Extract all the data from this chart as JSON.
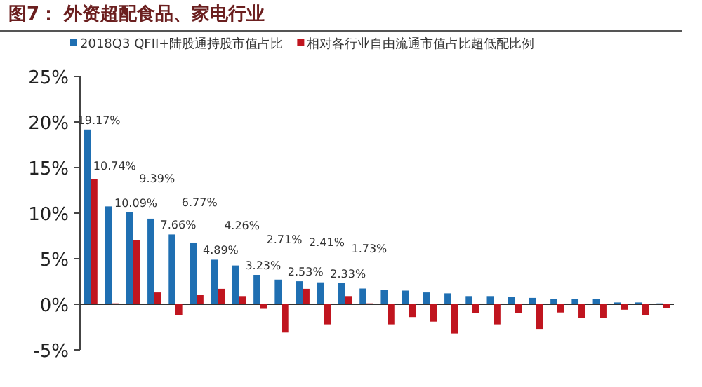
{
  "chart_data": {
    "type": "bar",
    "title": "图7： 外资超配食品、家电行业",
    "categories": [
      null,
      null,
      null,
      null,
      null,
      null,
      null,
      null,
      null,
      null,
      null,
      null,
      null,
      null,
      null,
      null,
      null,
      null,
      null,
      null,
      null,
      null,
      null,
      null,
      null,
      null,
      null,
      null
    ],
    "series": [
      {
        "name": "2018Q3 QFII+陆股通持股市值占比",
        "color": "#1f6fb2",
        "values": [
          19.17,
          10.74,
          10.09,
          9.39,
          7.66,
          6.77,
          4.89,
          4.26,
          3.23,
          2.71,
          2.53,
          2.41,
          2.33,
          1.73,
          1.6,
          1.5,
          1.3,
          1.2,
          0.9,
          0.9,
          0.8,
          0.7,
          0.6,
          0.6,
          0.6,
          0.2,
          0.2,
          0.1
        ],
        "value_labels": [
          "19.17%",
          "10.74%",
          "10.09%",
          "9.39%",
          "7.66%",
          "6.77%",
          "4.89%",
          "4.26%",
          "3.23%",
          "2.71%",
          "2.53%",
          "2.41%",
          "2.33%",
          "1.73%",
          null,
          null,
          null,
          null,
          null,
          null,
          null,
          null,
          null,
          null,
          null,
          null,
          null,
          null
        ]
      },
      {
        "name": "相对各行业自由流通市值占比超低配比例",
        "color": "#c0151f",
        "values": [
          13.7,
          0.1,
          7.0,
          1.3,
          -1.2,
          1.0,
          1.7,
          0.9,
          -0.5,
          -3.1,
          1.7,
          -2.2,
          0.9,
          0.1,
          -2.2,
          -1.4,
          -1.9,
          -3.2,
          -1.0,
          -2.2,
          -1.0,
          -2.7,
          -0.9,
          -1.5,
          -1.5,
          -0.6,
          -1.2,
          -0.4
        ]
      }
    ],
    "ylim": [
      -5,
      25
    ],
    "yticks": [
      {
        "value": -5,
        "label": "-5%"
      },
      {
        "value": 0,
        "label": "0%"
      },
      {
        "value": 5,
        "label": "5%"
      },
      {
        "value": 10,
        "label": "10%"
      },
      {
        "value": 15,
        "label": "15%"
      },
      {
        "value": 20,
        "label": "20%"
      },
      {
        "value": 25,
        "label": "25%"
      }
    ],
    "legend": "top"
  }
}
